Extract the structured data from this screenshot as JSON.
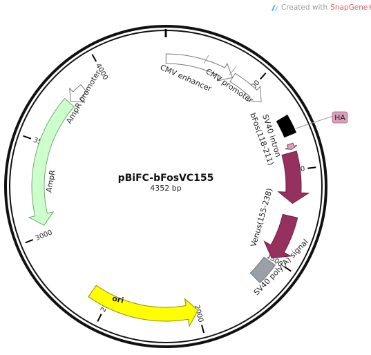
{
  "watermark": {
    "prefix": "Created with",
    "brand": "SnapGene",
    "mark": "®"
  },
  "plasmid": {
    "name": "pBiFC-bFosVC155",
    "length_label": "4352 bp",
    "length_bp": 4352
  },
  "ticks": [
    {
      "bp": 500,
      "label": "500"
    },
    {
      "bp": 1000,
      "label": "1000"
    },
    {
      "bp": 1500,
      "label": "1500"
    },
    {
      "bp": 2000,
      "label": "2000"
    },
    {
      "bp": 2500,
      "label": "2500"
    },
    {
      "bp": 3000,
      "label": "3000"
    },
    {
      "bp": 3500,
      "label": "3500"
    },
    {
      "bp": 4000,
      "label": "4000"
    }
  ],
  "features": [
    {
      "id": "cmv-enhancer",
      "label": "CMV enhancer",
      "start": 1,
      "end": 380,
      "direction": 1,
      "fill": "#ffffff",
      "stroke": "#777777"
    },
    {
      "id": "cmv-promoter",
      "label": "CMV promoter",
      "start": 381,
      "end": 584,
      "direction": 1,
      "fill": "#ffffff",
      "stroke": "#777777"
    },
    {
      "id": "sv40-intron",
      "label": "SV40 intron",
      "start": 720,
      "end": 815,
      "direction": 0,
      "fill": "#000000",
      "stroke": "#000000"
    },
    {
      "id": "ha-tag",
      "label": "HA",
      "start": 860,
      "end": 890,
      "direction": 1,
      "fill": "#d9a0b9",
      "stroke": "#8a4a66"
    },
    {
      "id": "bfos",
      "label": "bFos(118-211)",
      "start": 905,
      "end": 1180,
      "direction": 1,
      "fill": "#96305e",
      "stroke": "#6c1f43"
    },
    {
      "id": "venus",
      "label": "Venus(155-238)",
      "start": 1250,
      "end": 1500,
      "direction": 1,
      "fill": "#96305e",
      "stroke": "#6c1f43"
    },
    {
      "id": "sv40-polya",
      "label": "SV40 poly(A) signal",
      "start": 1520,
      "end": 1640,
      "direction": 0,
      "fill": "#9aa0a7",
      "stroke": "#6e747a"
    },
    {
      "id": "ori",
      "label": "ori",
      "start": 2000,
      "end": 2600,
      "direction": -1,
      "fill": "#ffff00",
      "stroke": "#8c8c00"
    },
    {
      "id": "ampr",
      "label": "AmpR",
      "start": 3050,
      "end": 3760,
      "direction": -1,
      "fill": "#ccffcc",
      "stroke": "#6fa86f"
    },
    {
      "id": "ampr-promoter",
      "label": "AmpR promoter",
      "start": 3770,
      "end": 3870,
      "direction": -1,
      "fill": "#ffffff",
      "stroke": "#777777"
    }
  ]
}
